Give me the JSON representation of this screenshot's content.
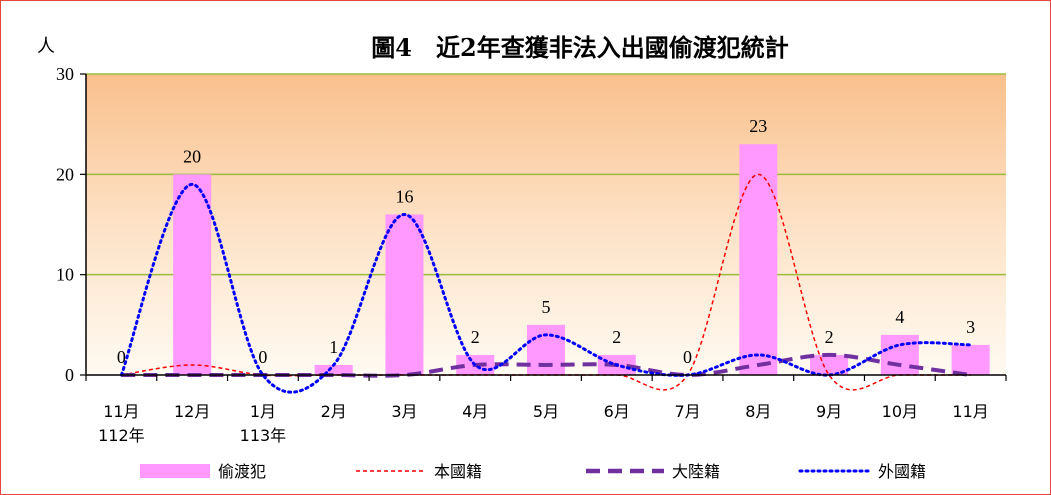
{
  "chart_data": {
    "type": "bar",
    "title": "圖4　近2年查獲非法入出國偷渡犯統計",
    "ylabel": "人",
    "ylim": [
      0,
      30
    ],
    "yticks": [
      0,
      10,
      20,
      30
    ],
    "grid": true,
    "legend_position": "bottom",
    "categories": [
      "11月",
      "12月",
      "1月",
      "2月",
      "3月",
      "4月",
      "5月",
      "6月",
      "7月",
      "8月",
      "9月",
      "10月",
      "11月"
    ],
    "category_sublabels": [
      "112年",
      "",
      "113年",
      "",
      "",
      "",
      "",
      "",
      "",
      "",
      "",
      "",
      ""
    ],
    "series": [
      {
        "name": "偷渡犯",
        "kind": "bar",
        "color": "#ff99ff",
        "values": [
          0,
          20,
          0,
          1,
          16,
          2,
          5,
          2,
          0,
          23,
          2,
          4,
          3
        ],
        "data_labels": true
      },
      {
        "name": "本國籍",
        "kind": "line",
        "style": "dashed",
        "color": "#ff0000",
        "values": [
          0,
          1,
          0,
          0,
          0,
          0,
          0,
          0,
          0,
          20,
          0,
          0,
          0
        ]
      },
      {
        "name": "大陸籍",
        "kind": "line",
        "style": "long-dash",
        "color": "#7030a0",
        "values": [
          0,
          0,
          0,
          0,
          0,
          1,
          1,
          1,
          0,
          1,
          2,
          1,
          0
        ]
      },
      {
        "name": "外國籍",
        "kind": "line",
        "style": "dotted",
        "color": "#0000ff",
        "values": [
          0,
          19,
          0,
          1,
          16,
          1,
          4,
          1,
          0,
          2,
          0,
          3,
          3
        ]
      }
    ]
  }
}
